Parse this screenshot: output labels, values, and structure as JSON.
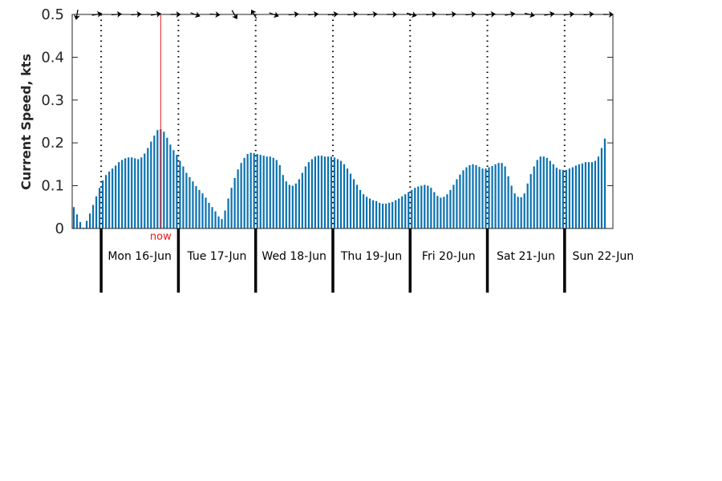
{
  "chart_data": {
    "type": "bar",
    "ylabel": "Current Speed, kts",
    "ylim": [
      0,
      0.5
    ],
    "yticks": [
      0,
      0.1,
      0.2,
      0.3,
      0.4,
      0.5
    ],
    "ytick_labels": [
      "0",
      "0.1",
      "0.2",
      "0.3",
      "0.4",
      "0.5"
    ],
    "bar_color": "#0a71b0",
    "now_color": "#e8191d",
    "now_label": "now",
    "now_position_days": 0.75,
    "x_start_hour_offset": -9,
    "x_end_hour": 159,
    "days": [
      {
        "label": "Mon 16-Jun",
        "start_hour": 0
      },
      {
        "label": "Tue 17-Jun",
        "start_hour": 24
      },
      {
        "label": "Wed 18-Jun",
        "start_hour": 48
      },
      {
        "label": "Thu 19-Jun",
        "start_hour": 72
      },
      {
        "label": "Fri 20-Jun",
        "start_hour": 96
      },
      {
        "label": "Sat 21-Jun",
        "start_hour": 120
      },
      {
        "label": "Sun 22-Jun",
        "start_hour": 144
      }
    ],
    "values": [
      0.05,
      0.033,
      0.015,
      0.002,
      0.018,
      0.035,
      0.055,
      0.075,
      0.095,
      0.112,
      0.125,
      0.133,
      0.14,
      0.147,
      0.155,
      0.16,
      0.164,
      0.166,
      0.166,
      0.164,
      0.162,
      0.166,
      0.175,
      0.188,
      0.203,
      0.217,
      0.23,
      0.232,
      0.226,
      0.212,
      0.196,
      0.183,
      0.172,
      0.158,
      0.145,
      0.13,
      0.12,
      0.11,
      0.099,
      0.09,
      0.082,
      0.072,
      0.06,
      0.05,
      0.04,
      0.028,
      0.022,
      0.042,
      0.07,
      0.095,
      0.118,
      0.138,
      0.153,
      0.165,
      0.174,
      0.177,
      0.176,
      0.174,
      0.172,
      0.17,
      0.168,
      0.168,
      0.165,
      0.16,
      0.148,
      0.125,
      0.11,
      0.102,
      0.1,
      0.105,
      0.115,
      0.13,
      0.145,
      0.155,
      0.162,
      0.168,
      0.17,
      0.17,
      0.168,
      0.168,
      0.168,
      0.166,
      0.162,
      0.158,
      0.15,
      0.14,
      0.128,
      0.115,
      0.102,
      0.09,
      0.08,
      0.074,
      0.07,
      0.066,
      0.064,
      0.06,
      0.058,
      0.058,
      0.06,
      0.062,
      0.066,
      0.07,
      0.075,
      0.08,
      0.085,
      0.09,
      0.095,
      0.098,
      0.1,
      0.102,
      0.1,
      0.095,
      0.085,
      0.076,
      0.072,
      0.074,
      0.08,
      0.09,
      0.102,
      0.115,
      0.126,
      0.136,
      0.143,
      0.148,
      0.15,
      0.148,
      0.144,
      0.14,
      0.14,
      0.143,
      0.146,
      0.15,
      0.153,
      0.153,
      0.145,
      0.122,
      0.1,
      0.082,
      0.074,
      0.073,
      0.082,
      0.105,
      0.127,
      0.145,
      0.16,
      0.168,
      0.168,
      0.165,
      0.158,
      0.15,
      0.142,
      0.138,
      0.137,
      0.137,
      0.14,
      0.143,
      0.147,
      0.15,
      0.152,
      0.155,
      0.155,
      0.155,
      0.158,
      0.168,
      0.188,
      0.21
    ],
    "arrow_directions_deg": [
      -80,
      170,
      175,
      175,
      170,
      180,
      200,
      185,
      240,
      60,
      200,
      175,
      175,
      175,
      175,
      175,
      180,
      195,
      175,
      175,
      175,
      175,
      170,
      195,
      170,
      175,
      175,
      180
    ]
  }
}
